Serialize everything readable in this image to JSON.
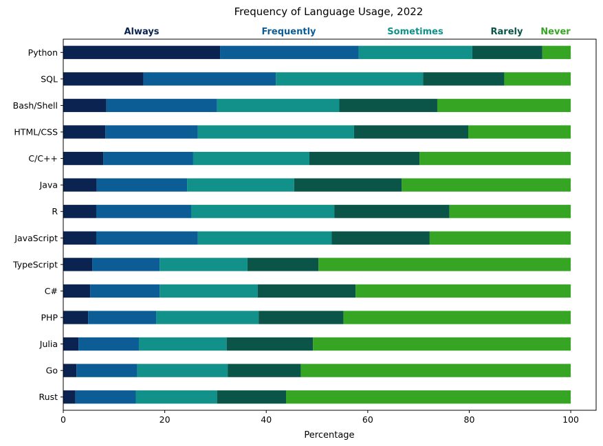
{
  "chart_data": {
    "type": "bar",
    "orientation": "horizontal",
    "stacked": true,
    "title": "Frequency of Language Usage, 2022",
    "xlabel": "Percentage",
    "ylabel": "",
    "xlim": [
      0,
      105
    ],
    "xticks": [
      0,
      20,
      40,
      60,
      80,
      100
    ],
    "legend_position": "top",
    "grid": false,
    "categories": [
      "Python",
      "SQL",
      "Bash/Shell",
      "HTML/CSS",
      "C/C++",
      "Java",
      "R",
      "JavaScript",
      "TypeScript",
      "C#",
      "PHP",
      "Julia",
      "Go",
      "Rust"
    ],
    "series": [
      {
        "name": "Always",
        "color": "#0a2351",
        "values": [
          30.9,
          15.8,
          8.5,
          8.3,
          7.9,
          6.6,
          6.5,
          6.5,
          5.7,
          5.3,
          4.9,
          3.0,
          2.6,
          2.4
        ]
      },
      {
        "name": "Frequently",
        "color": "#0c5d96",
        "values": [
          27.3,
          26.1,
          21.8,
          18.2,
          17.7,
          17.8,
          18.7,
          20.0,
          13.3,
          13.7,
          13.4,
          11.9,
          12.0,
          11.9
        ]
      },
      {
        "name": "Sometimes",
        "color": "#12908a",
        "values": [
          22.4,
          29.0,
          24.1,
          30.8,
          22.9,
          21.1,
          28.2,
          26.4,
          17.3,
          19.3,
          20.2,
          17.3,
          17.8,
          16.0
        ]
      },
      {
        "name": "Rarely",
        "color": "#0a5448",
        "values": [
          13.8,
          16.0,
          19.3,
          22.5,
          21.7,
          21.2,
          22.7,
          19.3,
          14.0,
          19.3,
          16.7,
          17.0,
          14.4,
          13.6
        ]
      },
      {
        "name": "Never",
        "color": "#35a523",
        "values": [
          5.6,
          13.1,
          26.3,
          20.2,
          29.8,
          33.3,
          23.9,
          27.8,
          49.7,
          42.4,
          44.8,
          50.8,
          53.2,
          56.1
        ]
      }
    ]
  }
}
